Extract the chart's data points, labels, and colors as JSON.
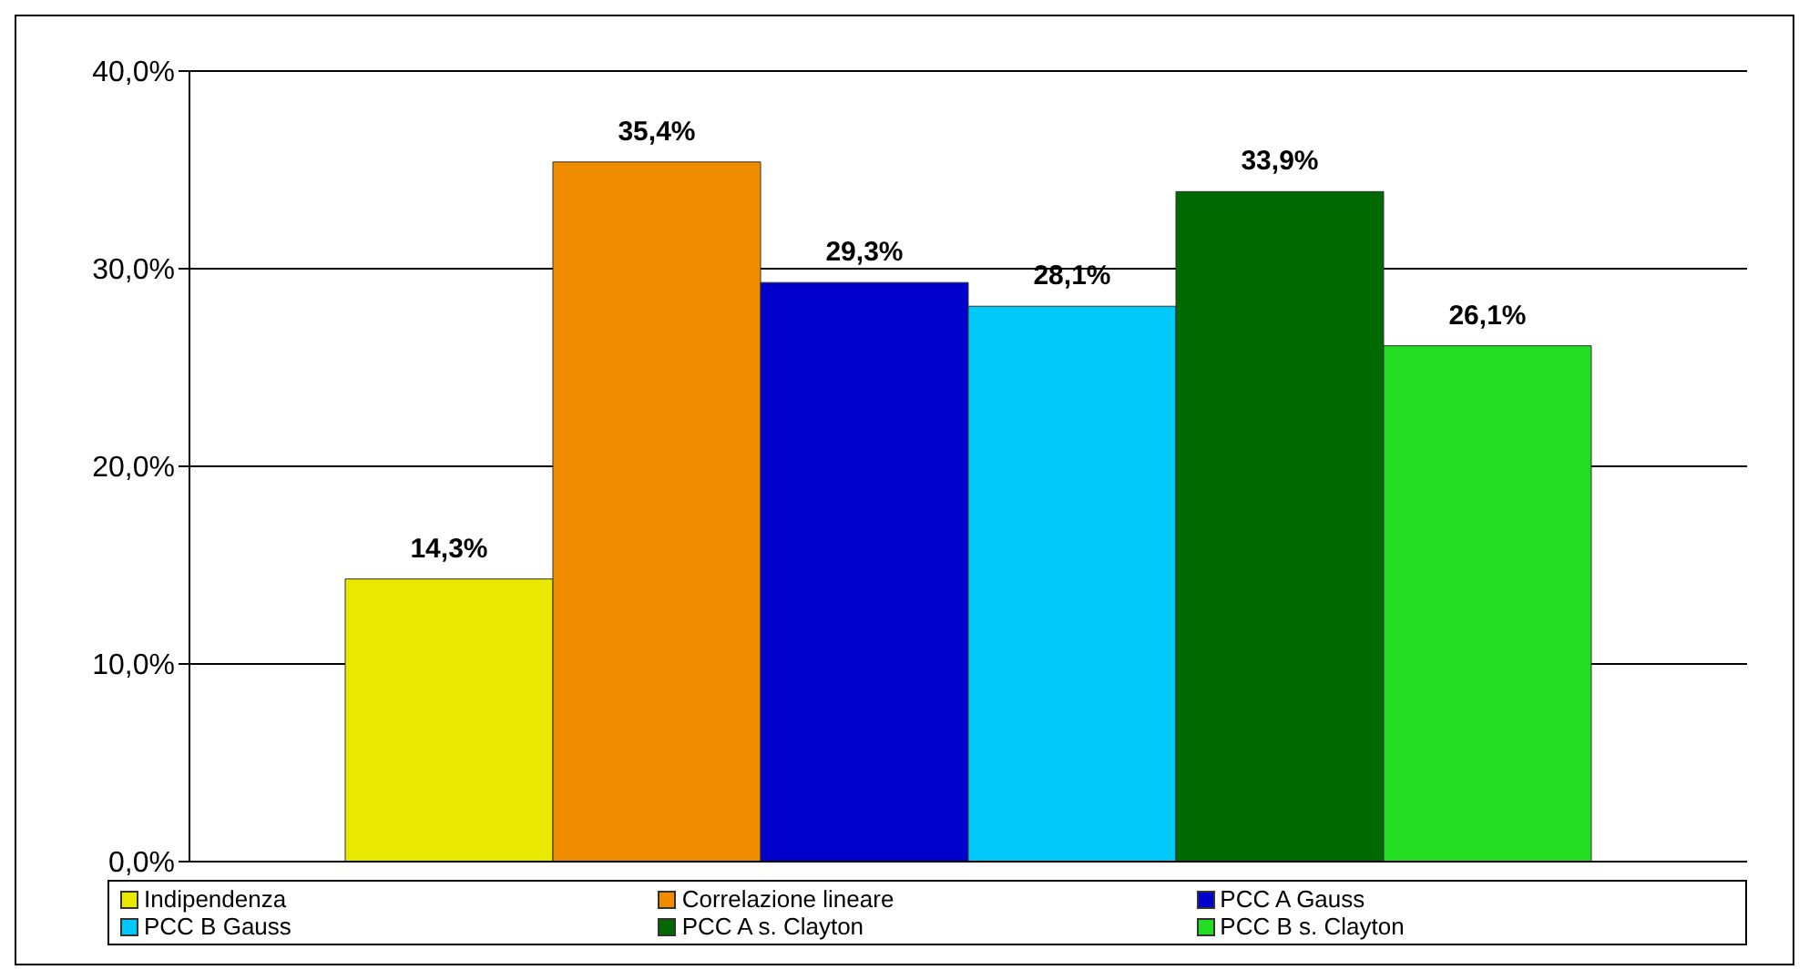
{
  "chart_data": {
    "type": "bar",
    "categories": [
      null
    ],
    "series": [
      {
        "name": "Indipendenza",
        "color": "#e8e800",
        "values": [
          14.3
        ],
        "value_labels": [
          "14,3%"
        ]
      },
      {
        "name": "Correlazione lineare",
        "color": "#f08c00",
        "values": [
          35.4
        ],
        "value_labels": [
          "35,4%"
        ]
      },
      {
        "name": "PCC A Gauss",
        "color": "#0000cc",
        "values": [
          29.3
        ],
        "value_labels": [
          "29,3%"
        ]
      },
      {
        "name": "PCC B Gauss",
        "color": "#00c8f8",
        "values": [
          28.1
        ],
        "value_labels": [
          "28,1%"
        ]
      },
      {
        "name": "PCC A s. Clayton",
        "color": "#006a00",
        "values": [
          33.9
        ],
        "value_labels": [
          "33,9%"
        ]
      },
      {
        "name": "PCC B s. Clayton",
        "color": "#22dd22",
        "values": [
          26.1
        ],
        "value_labels": [
          "26,1%"
        ]
      }
    ],
    "ylim": [
      0,
      40
    ],
    "yticks": [
      {
        "value": 0,
        "label": "0,0%"
      },
      {
        "value": 10,
        "label": "10,0%"
      },
      {
        "value": 20,
        "label": "20,0%"
      },
      {
        "value": 30,
        "label": "30,0%"
      },
      {
        "value": 40,
        "label": "40,0%"
      }
    ],
    "grid": "y",
    "legend": "bottom"
  }
}
